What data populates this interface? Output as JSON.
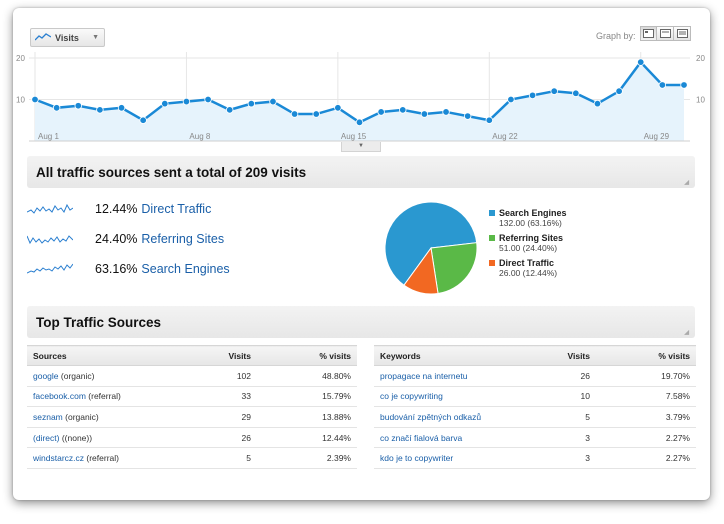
{
  "toolbar": {
    "metric_label": "Visits",
    "graph_by_label": "Graph by:",
    "graph_by_options": [
      "day-icon",
      "week-icon",
      "month-icon"
    ]
  },
  "chart_data": {
    "type": "line",
    "series": [
      {
        "name": "Visits",
        "values": [
          10,
          8,
          8.5,
          7.5,
          8,
          5,
          9,
          9.5,
          10,
          7.5,
          9,
          9.5,
          6.5,
          6.5,
          8,
          4.5,
          7,
          7.5,
          6.5,
          7,
          6,
          5,
          10,
          11,
          12,
          11.5,
          9,
          12,
          19,
          13.5,
          13.5
        ]
      }
    ],
    "x_tick_labels": [
      "Aug 1",
      "Aug 8",
      "Aug 15",
      "Aug 22",
      "Aug 29"
    ],
    "y_tick_labels": [
      "20",
      "10"
    ],
    "ylim": [
      0,
      20
    ],
    "grid": true,
    "colors": {
      "line": "#1a89d6",
      "fill": "#e6f3fc"
    }
  },
  "traffic": {
    "header": "All traffic sources sent a total of 209 visits",
    "sources": [
      {
        "pct": "12.44%",
        "label": "Direct Traffic"
      },
      {
        "pct": "24.40%",
        "label": "Referring Sites"
      },
      {
        "pct": "63.16%",
        "label": "Search Engines"
      }
    ],
    "pie": [
      {
        "name": "Search Engines",
        "value": 132.0,
        "share": 63.16,
        "detail": "132.00 (63.16%)",
        "color": "#2a98d0"
      },
      {
        "name": "Referring Sites",
        "value": 51.0,
        "share": 24.4,
        "detail": "51.00 (24.40%)",
        "color": "#5ab947"
      },
      {
        "name": "Direct Traffic",
        "value": 26.0,
        "share": 12.44,
        "detail": "26.00 (12.44%)",
        "color": "#f26822"
      }
    ]
  },
  "top_sources": {
    "header": "Top Traffic Sources",
    "sources_table": {
      "headers": [
        "Sources",
        "Visits",
        "% visits"
      ],
      "rows": [
        {
          "link": "google",
          "medium": "(organic)",
          "visits": "102",
          "pct": "48.80%"
        },
        {
          "link": "facebook.com",
          "medium": "(referral)",
          "visits": "33",
          "pct": "15.79%"
        },
        {
          "link": "seznam",
          "medium": "(organic)",
          "visits": "29",
          "pct": "13.88%"
        },
        {
          "link": "(direct)",
          "medium": "((none))",
          "visits": "26",
          "pct": "12.44%"
        },
        {
          "link": "windstarcz.cz",
          "medium": "(referral)",
          "visits": "5",
          "pct": "2.39%"
        }
      ]
    },
    "keywords_table": {
      "headers": [
        "Keywords",
        "Visits",
        "% visits"
      ],
      "rows": [
        {
          "link": "propagace na internetu",
          "visits": "26",
          "pct": "19.70%"
        },
        {
          "link": "co je copywriting",
          "visits": "10",
          "pct": "7.58%"
        },
        {
          "link": "budování zpětných odkazů",
          "visits": "5",
          "pct": "3.79%"
        },
        {
          "link": "co značí fialová barva",
          "visits": "3",
          "pct": "2.27%"
        },
        {
          "link": "kdo je to copywriter",
          "visits": "3",
          "pct": "2.27%"
        }
      ]
    }
  }
}
